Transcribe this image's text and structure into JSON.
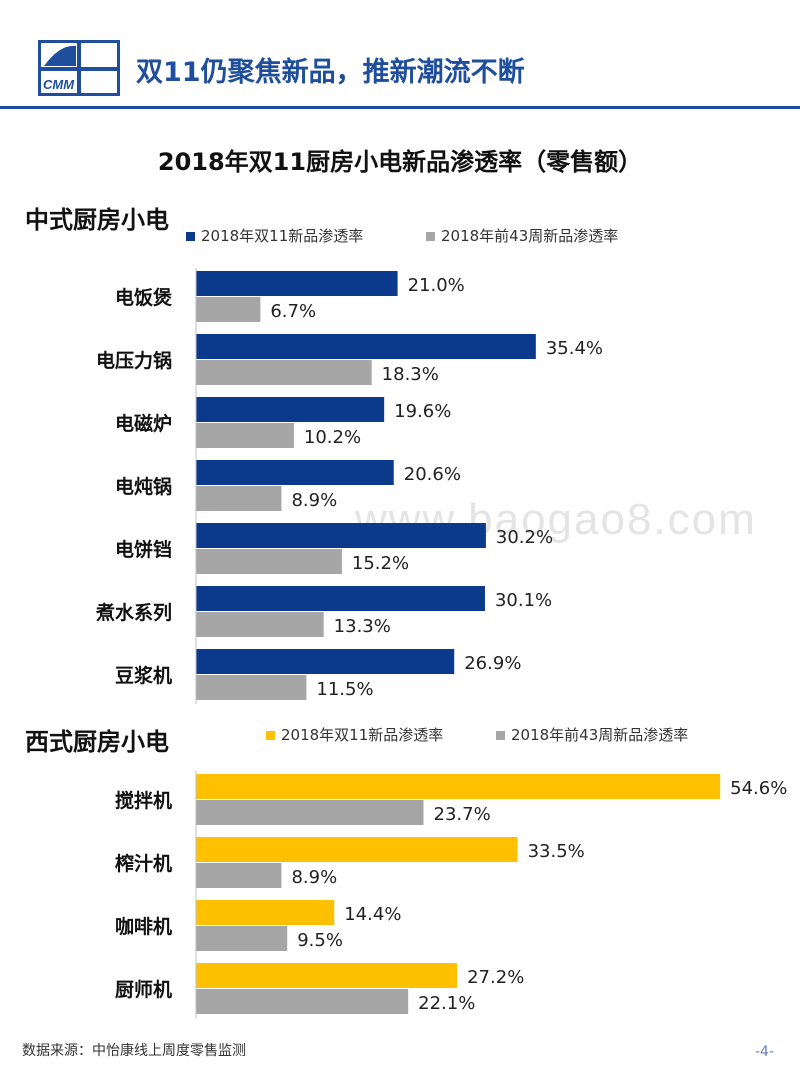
{
  "header": {
    "logo_text": "CMM",
    "title": "双11仍聚焦新品，推新潮流不断"
  },
  "watermark": "www.baogao8.com",
  "colors": {
    "primary_blue": "#0b3a8c",
    "accent_yellow": "#ffc000",
    "gray": "#a6a6a6",
    "header_blue": "#1f4e9c"
  },
  "footer": {
    "source": "数据来源：中怡康线上周度零售监测",
    "page": "-4-"
  },
  "chart_data": [
    {
      "type": "bar",
      "orientation": "horizontal",
      "title": "2018年双11厨房小电新品渗透率（零售额）",
      "group_title": "中式厨房小电",
      "categories": [
        "电饭煲",
        "电压力锅",
        "电磁炉",
        "电炖锅",
        "电饼铛",
        "煮水系列",
        "豆浆机"
      ],
      "series": [
        {
          "name": "2018年双11新品渗透率",
          "color": "#0b3a8c",
          "values": [
            21.0,
            35.4,
            19.6,
            20.6,
            30.2,
            30.1,
            26.9
          ]
        },
        {
          "name": "2018年前43周新品渗透率",
          "color": "#a6a6a6",
          "values": [
            6.7,
            18.3,
            10.2,
            8.9,
            15.2,
            13.3,
            11.5
          ]
        }
      ],
      "value_labels": [
        [
          "21.0%",
          "35.4%",
          "19.6%",
          "20.6%",
          "30.2%",
          "30.1%",
          "26.9%"
        ],
        [
          "6.7%",
          "18.3%",
          "10.2%",
          "8.9%",
          "15.2%",
          "13.3%",
          "11.5%"
        ]
      ],
      "legend_position": "top",
      "unit": "%"
    },
    {
      "type": "bar",
      "orientation": "horizontal",
      "group_title": "西式厨房小电",
      "categories": [
        "搅拌机",
        "榨汁机",
        "咖啡机",
        "厨师机"
      ],
      "series": [
        {
          "name": "2018年双11新品渗透率",
          "color": "#ffc000",
          "values": [
            54.6,
            33.5,
            14.4,
            27.2
          ]
        },
        {
          "name": "2018年前43周新品渗透率",
          "color": "#a6a6a6",
          "values": [
            23.7,
            8.9,
            9.5,
            22.1
          ]
        }
      ],
      "value_labels": [
        [
          "54.6%",
          "33.5%",
          "14.4%",
          "27.2%"
        ],
        [
          "23.7%",
          "8.9%",
          "9.5%",
          "22.1%"
        ]
      ],
      "legend_position": "top",
      "unit": "%"
    }
  ]
}
